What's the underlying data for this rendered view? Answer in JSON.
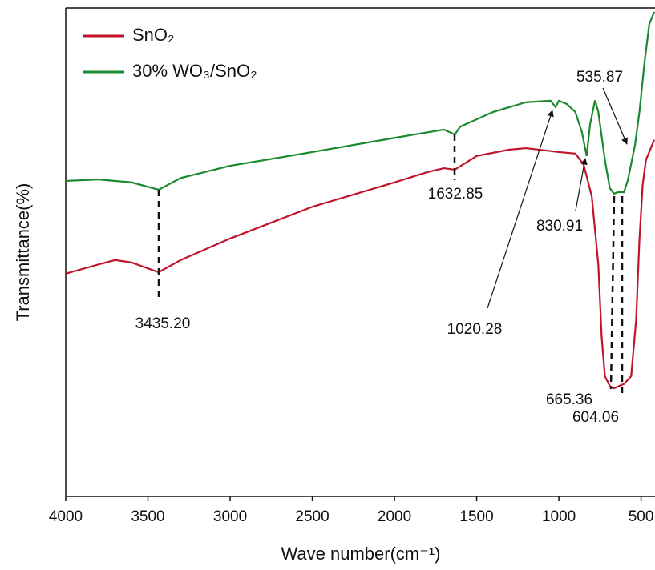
{
  "chart_data": {
    "type": "line",
    "xlabel": "Wave number(cm⁻¹)",
    "ylabel": "Transmittance(%)",
    "xlim": [
      4000,
      420
    ],
    "xticks": [
      4000,
      3500,
      3000,
      2500,
      2000,
      1500,
      1000,
      500
    ],
    "ylim": [
      0,
      100
    ],
    "legend": "top-left",
    "series": [
      {
        "name": "SnO₂",
        "color": "#c0142a",
        "x": [
          4000,
          3800,
          3700,
          3600,
          3435,
          3300,
          3000,
          2500,
          2000,
          1800,
          1700,
          1633,
          1500,
          1300,
          1200,
          1000,
          900,
          850,
          800,
          760,
          740,
          720,
          690,
          665,
          640,
          604,
          560,
          530,
          510,
          490,
          470,
          420
        ],
        "values": [
          45.6,
          47.5,
          48.4,
          47.9,
          45.9,
          48.4,
          52.8,
          59.3,
          64.3,
          66.4,
          67.2,
          66.9,
          69.7,
          71,
          71.3,
          70.5,
          70.2,
          68.0,
          61.5,
          47.5,
          32.8,
          24.6,
          22.6,
          22.1,
          22.5,
          23,
          24.6,
          36.1,
          52.5,
          63.9,
          68.9,
          73
        ]
      },
      {
        "name": "30% WO₃/SnO₂",
        "color": "#1a8a2e",
        "x": [
          4000,
          3800,
          3600,
          3435,
          3300,
          3000,
          2500,
          2000,
          1700,
          1633,
          1600,
          1400,
          1200,
          1050,
          1020,
          1000,
          950,
          900,
          860,
          831,
          810,
          780,
          760,
          720,
          690,
          665,
          640,
          604,
          580,
          536,
          510,
          480,
          450,
          420
        ],
        "values": [
          64.6,
          64.9,
          64.3,
          62.8,
          65.2,
          67.7,
          70.5,
          73.4,
          75.1,
          74.1,
          75.7,
          78.7,
          80.7,
          81,
          79.7,
          81,
          80.3,
          78.7,
          74.6,
          69.7,
          76.2,
          81.1,
          78.7,
          68.9,
          63.1,
          62,
          62.3,
          62.3,
          64.8,
          72.1,
          78.7,
          88.5,
          96.7,
          99.2
        ]
      }
    ],
    "annotations": [
      "3435.20",
      "1632.85",
      "1020.28",
      "830.91",
      "535.87",
      "665.36",
      "604.06"
    ]
  }
}
